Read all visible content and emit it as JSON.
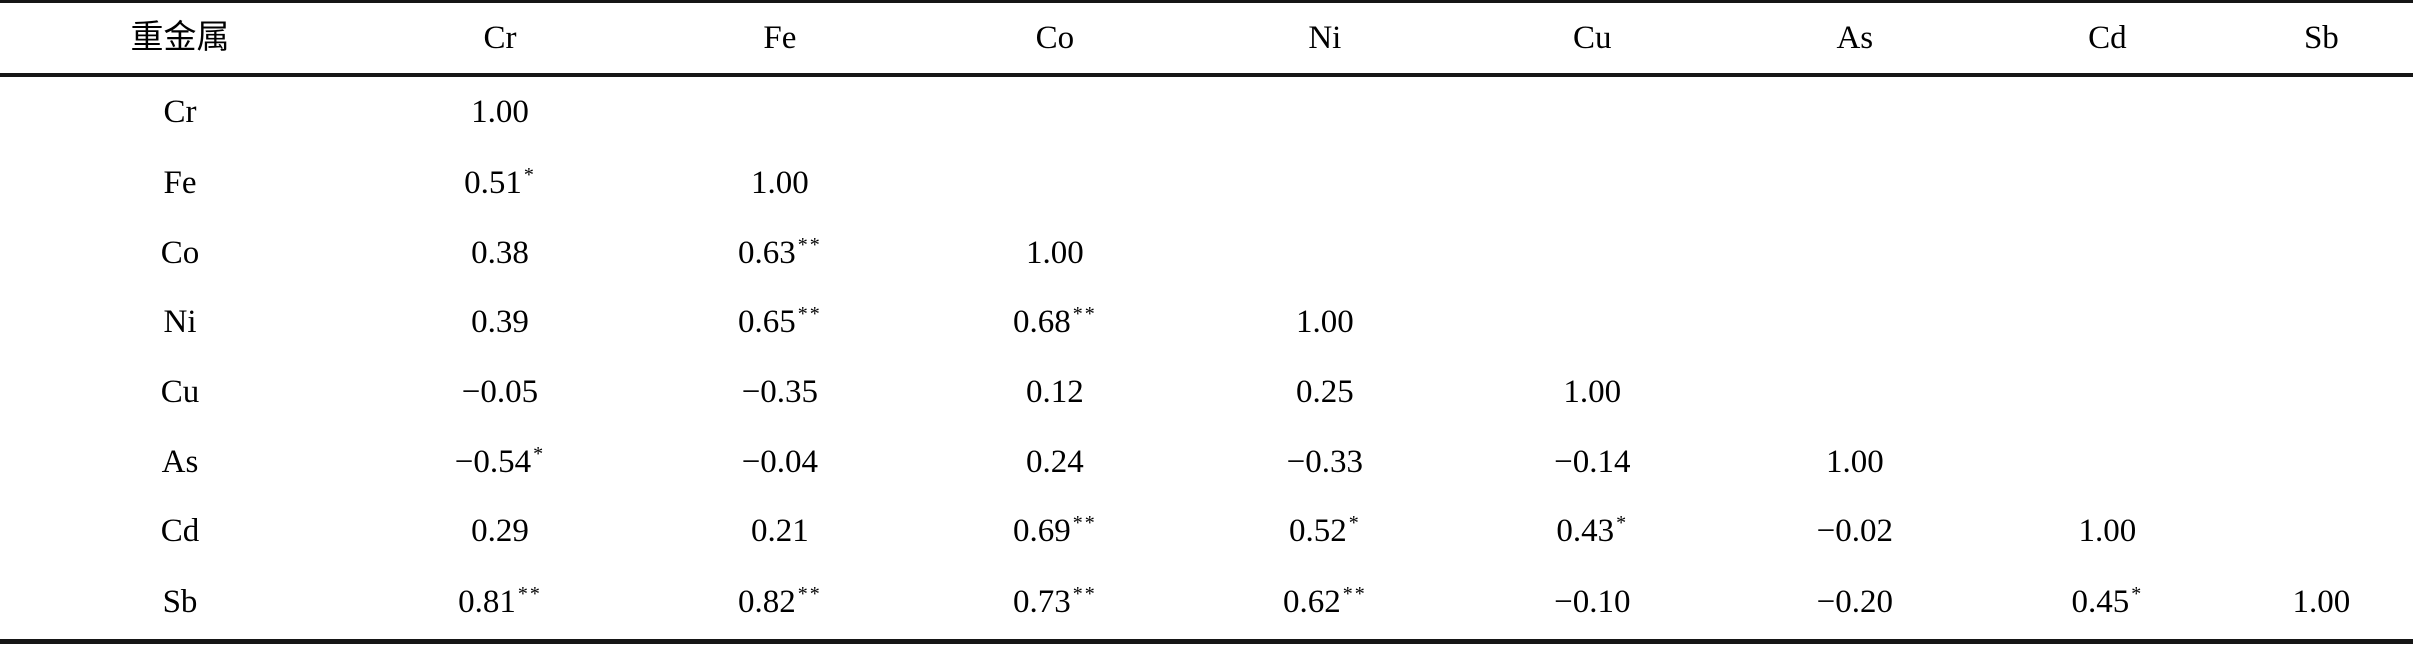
{
  "page": {
    "background": "#ffffff",
    "text_color": "#000000",
    "rule_color": "#161616"
  },
  "table": {
    "columns": [
      "重金属",
      "Cr",
      "Fe",
      "Co",
      "Ni",
      "Cu",
      "As",
      "Cd",
      "Sb"
    ],
    "rows": [
      {
        "label": "Cr",
        "cells": [
          {
            "value": "1.00",
            "sig": ""
          }
        ]
      },
      {
        "label": "Fe",
        "cells": [
          {
            "value": "0.51",
            "sig": "*"
          },
          {
            "value": "1.00",
            "sig": ""
          }
        ]
      },
      {
        "label": "Co",
        "cells": [
          {
            "value": "0.38",
            "sig": ""
          },
          {
            "value": "0.63",
            "sig": "**"
          },
          {
            "value": "1.00",
            "sig": ""
          }
        ]
      },
      {
        "label": "Ni",
        "cells": [
          {
            "value": "0.39",
            "sig": ""
          },
          {
            "value": "0.65",
            "sig": "**"
          },
          {
            "value": "0.68",
            "sig": "**"
          },
          {
            "value": "1.00",
            "sig": ""
          }
        ]
      },
      {
        "label": "Cu",
        "cells": [
          {
            "value": "−0.05",
            "sig": ""
          },
          {
            "value": "−0.35",
            "sig": ""
          },
          {
            "value": "0.12",
            "sig": ""
          },
          {
            "value": "0.25",
            "sig": ""
          },
          {
            "value": "1.00",
            "sig": ""
          }
        ]
      },
      {
        "label": "As",
        "cells": [
          {
            "value": "−0.54",
            "sig": "*"
          },
          {
            "value": "−0.04",
            "sig": ""
          },
          {
            "value": "0.24",
            "sig": ""
          },
          {
            "value": "−0.33",
            "sig": ""
          },
          {
            "value": "−0.14",
            "sig": ""
          },
          {
            "value": "1.00",
            "sig": ""
          }
        ]
      },
      {
        "label": "Cd",
        "cells": [
          {
            "value": "0.29",
            "sig": ""
          },
          {
            "value": "0.21",
            "sig": ""
          },
          {
            "value": "0.69",
            "sig": "**"
          },
          {
            "value": "0.52",
            "sig": "*"
          },
          {
            "value": "0.43",
            "sig": "*"
          },
          {
            "value": "−0.02",
            "sig": ""
          },
          {
            "value": "1.00",
            "sig": ""
          }
        ]
      },
      {
        "label": "Sb",
        "cells": [
          {
            "value": "0.81",
            "sig": "**"
          },
          {
            "value": "0.82",
            "sig": "**"
          },
          {
            "value": "0.73",
            "sig": "**"
          },
          {
            "value": "0.62",
            "sig": "**"
          },
          {
            "value": "−0.10",
            "sig": ""
          },
          {
            "value": "−0.20",
            "sig": ""
          },
          {
            "value": "0.45",
            "sig": "*"
          },
          {
            "value": "1.00",
            "sig": ""
          }
        ]
      }
    ]
  },
  "chart_data": {
    "type": "table",
    "title": "",
    "columns": [
      "重金属",
      "Cr",
      "Fe",
      "Co",
      "Ni",
      "Cu",
      "As",
      "Cd",
      "Sb"
    ],
    "rows": [
      [
        "Cr",
        "1.00",
        "",
        "",
        "",
        "",
        "",
        "",
        ""
      ],
      [
        "Fe",
        "0.51*",
        "1.00",
        "",
        "",
        "",
        "",
        "",
        ""
      ],
      [
        "Co",
        "0.38",
        "0.63**",
        "1.00",
        "",
        "",
        "",
        "",
        ""
      ],
      [
        "Ni",
        "0.39",
        "0.65**",
        "0.68**",
        "1.00",
        "",
        "",
        "",
        ""
      ],
      [
        "Cu",
        "−0.05",
        "−0.35",
        "0.12",
        "0.25",
        "1.00",
        "",
        "",
        ""
      ],
      [
        "As",
        "−0.54*",
        "−0.04",
        "0.24",
        "−0.33",
        "−0.14",
        "1.00",
        "",
        ""
      ],
      [
        "Cd",
        "0.29",
        "0.21",
        "0.69**",
        "0.52*",
        "0.43*",
        "−0.02",
        "1.00",
        ""
      ],
      [
        "Sb",
        "0.81**",
        "0.82**",
        "0.73**",
        "0.62**",
        "−0.10",
        "−0.20",
        "0.45*",
        "1.00"
      ]
    ]
  }
}
